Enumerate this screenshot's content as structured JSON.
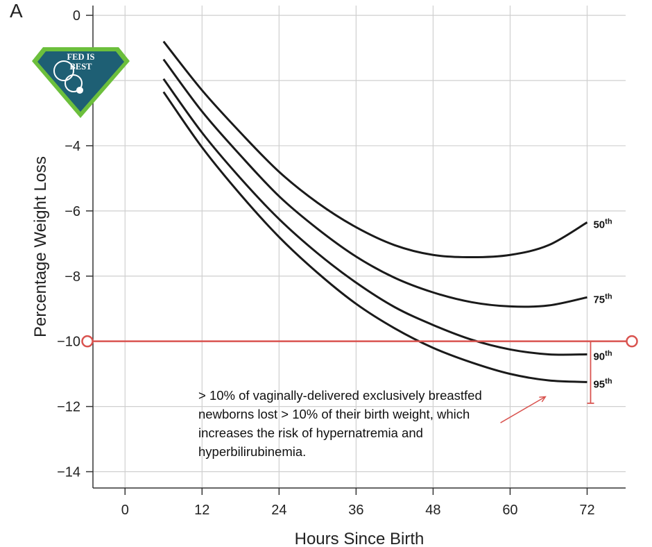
{
  "panel_label": "A",
  "annotation_text": "> 10% of vaginally-delivered exclusively breastfed newborns lost > 10% of their birth weight, which increases the risk of hypernatremia and hyperbilirubinemia.",
  "logo": {
    "line1": "FED IS",
    "line2": "BEST"
  },
  "colors": {
    "curve": "#1a1a1a",
    "highlight": "#d9534f",
    "grid": "#cfcfcf",
    "axis": "#333333",
    "logo_fill": "#1e5f74",
    "logo_border": "#6cbf3c"
  },
  "chart_data": {
    "type": "line",
    "xlabel": "Hours Since Birth",
    "ylabel": "Percentage Weight Loss",
    "xlim": [
      -5,
      78
    ],
    "ylim": [
      -14.5,
      0.3
    ],
    "xticks": [
      0,
      12,
      24,
      36,
      48,
      60,
      72
    ],
    "xtick_labels": [
      "0",
      "12",
      "24",
      "36",
      "48",
      "60",
      "72"
    ],
    "yticks": [
      0,
      -2,
      -4,
      -6,
      -8,
      -10,
      -12,
      -14
    ],
    "ytick_labels": [
      "0",
      "−2",
      "−4",
      "−6",
      "−8",
      "−10",
      "−12",
      "−14"
    ],
    "grid": true,
    "series": [
      {
        "name": "50",
        "label_suffix": "th",
        "x": [
          6,
          12,
          18,
          24,
          30,
          36,
          42,
          48,
          54,
          60,
          66,
          72
        ],
        "y": [
          -0.8,
          -2.3,
          -3.6,
          -4.8,
          -5.75,
          -6.5,
          -7.05,
          -7.35,
          -7.42,
          -7.35,
          -7.05,
          -6.35
        ]
      },
      {
        "name": "75",
        "label_suffix": "th",
        "x": [
          6,
          12,
          18,
          24,
          30,
          36,
          42,
          48,
          54,
          60,
          66,
          72
        ],
        "y": [
          -1.35,
          -2.95,
          -4.3,
          -5.55,
          -6.55,
          -7.4,
          -8.05,
          -8.5,
          -8.8,
          -8.93,
          -8.9,
          -8.65
        ]
      },
      {
        "name": "90",
        "label_suffix": "th",
        "x": [
          6,
          12,
          18,
          24,
          30,
          36,
          42,
          48,
          54,
          60,
          66,
          72
        ],
        "y": [
          -1.95,
          -3.6,
          -5.0,
          -6.25,
          -7.3,
          -8.2,
          -8.95,
          -9.5,
          -9.95,
          -10.25,
          -10.4,
          -10.4
        ]
      },
      {
        "name": "95",
        "label_suffix": "th",
        "x": [
          6,
          12,
          18,
          24,
          30,
          36,
          42,
          48,
          54,
          60,
          66,
          72
        ],
        "y": [
          -2.35,
          -4.05,
          -5.5,
          -6.8,
          -7.9,
          -8.85,
          -9.6,
          -10.2,
          -10.65,
          -11.0,
          -11.2,
          -11.25
        ]
      }
    ],
    "annotations": [
      {
        "type": "hline",
        "y": -10
      },
      {
        "type": "range",
        "x": 72,
        "y_from": -10,
        "y_to": -11.9
      },
      {
        "type": "arrow",
        "x_from": 58.5,
        "y_from": -12.5,
        "x_to": 65.5,
        "y_to": -11.7
      }
    ]
  }
}
